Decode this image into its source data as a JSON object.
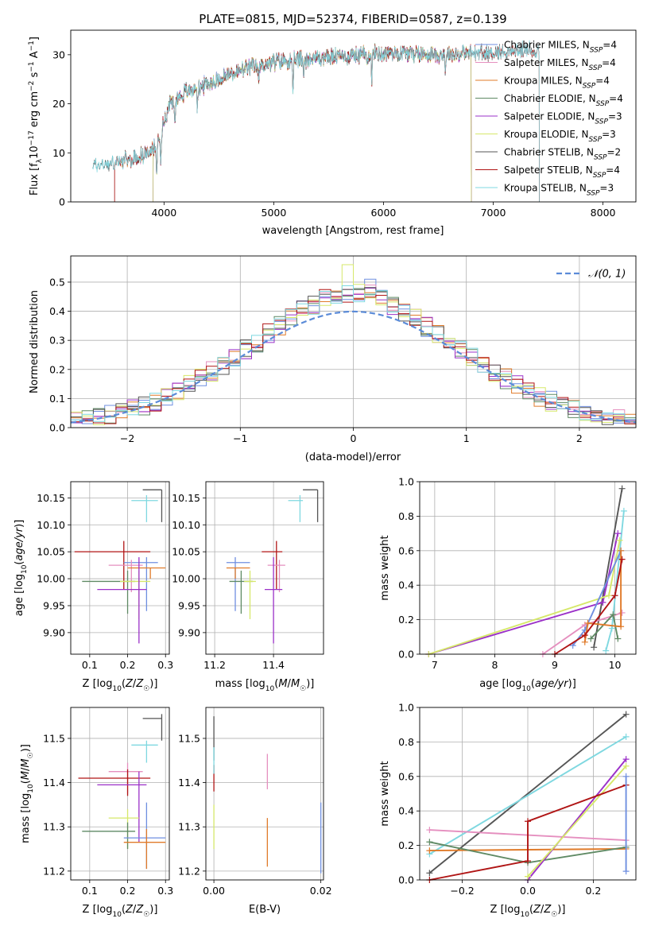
{
  "figure_title": "PLATE=0815, MJD=52374, FIBERID=0587, z=0.139",
  "colors": {
    "chabrier_miles": "#6f8fe0",
    "salpeter_miles": "#e58fbf",
    "kroupa_miles": "#e07b2a",
    "chabrier_elodie": "#5f8a64",
    "salpeter_elodie": "#9b30c8",
    "kroupa_elodie": "#d6e86a",
    "chabrier_stelib": "#555555",
    "salpeter_stelib": "#b01515",
    "kroupa_stelib": "#7fd8e0",
    "normal_curve": "#5b8bd8",
    "grid": "#b0b0b0"
  },
  "chart_data": [
    {
      "id": "spectrum",
      "type": "line",
      "title": "PLATE=0815, MJD=52374, FIBERID=0587, z=0.139",
      "xlabel": "wavelength [Angstrom, rest frame]",
      "ylabel": "Flux [f_λ10^-17 erg cm^-2 s^-1 A^-1]",
      "xlim": [
        3150,
        8300
      ],
      "ylim": [
        0,
        35
      ],
      "xticks": [
        4000,
        5000,
        6000,
        7000,
        8000
      ],
      "yticks": [
        0,
        10,
        20,
        30
      ],
      "grid": false,
      "legend_position": "top-right",
      "data_range": [
        3350,
        7420
      ],
      "continuum": [
        [
          3350,
          7.5
        ],
        [
          3500,
          7.8
        ],
        [
          3700,
          8.5
        ],
        [
          3900,
          10.5
        ],
        [
          3980,
          15
        ],
        [
          4050,
          20
        ],
        [
          4200,
          22.5
        ],
        [
          4400,
          24
        ],
        [
          4600,
          26
        ],
        [
          4800,
          27.5
        ],
        [
          5000,
          28.5
        ],
        [
          5200,
          29
        ],
        [
          5500,
          29.5
        ],
        [
          5800,
          30
        ],
        [
          6100,
          30.5
        ],
        [
          6500,
          30
        ],
        [
          7000,
          30.5
        ],
        [
          7420,
          31
        ]
      ],
      "absorption_lines": [
        [
          3934,
          8
        ],
        [
          3969,
          7
        ],
        [
          4101,
          4
        ],
        [
          4304,
          4
        ],
        [
          4861,
          3
        ],
        [
          5175,
          8
        ],
        [
          5270,
          3
        ],
        [
          5893,
          5
        ],
        [
          6563,
          3
        ]
      ],
      "series": [
        {
          "name": "Chabrier MILES, N_SSP=4",
          "color_key": "chabrier_miles",
          "range": [
            3550,
            6800
          ]
        },
        {
          "name": "Salpeter MILES, N_SSP=4",
          "color_key": "salpeter_miles",
          "range": [
            3550,
            6800
          ]
        },
        {
          "name": "Kroupa MILES, N_SSP=4",
          "color_key": "kroupa_miles",
          "range": [
            3550,
            6800
          ]
        },
        {
          "name": "Chabrier ELODIE, N_SSP=4",
          "color_key": "chabrier_elodie",
          "range": [
            3900,
            6800
          ]
        },
        {
          "name": "Salpeter ELODIE, N_SSP=3",
          "color_key": "salpeter_elodie",
          "range": [
            3900,
            6800
          ]
        },
        {
          "name": "Kroupa ELODIE, N_SSP=3",
          "color_key": "kroupa_elodie",
          "range": [
            3900,
            6800
          ]
        },
        {
          "name": "Chabrier STELIB, N_SSP=2",
          "color_key": "chabrier_stelib",
          "range": [
            3350,
            7420
          ]
        },
        {
          "name": "Salpeter STELIB, N_SSP=4",
          "color_key": "salpeter_stelib",
          "range": [
            3550,
            7420
          ]
        },
        {
          "name": "Kroupa STELIB, N_SSP=3",
          "color_key": "kroupa_stelib",
          "range": [
            3350,
            7420
          ]
        }
      ]
    },
    {
      "id": "residuals",
      "type": "line",
      "xlabel": "(data-model)/error",
      "ylabel": "Normed distribution",
      "xlim": [
        -2.5,
        2.5
      ],
      "ylim": [
        0,
        0.59
      ],
      "xticks": [
        -2,
        -1,
        0,
        1,
        2
      ],
      "yticks": [
        0.0,
        0.1,
        0.2,
        0.3,
        0.4,
        0.5
      ],
      "grid": true,
      "legend_position": "top-right",
      "legend": [
        {
          "label": "𝒩(0, 1)",
          "color_key": "normal_curve"
        }
      ],
      "bin_width": 0.1,
      "histogram_peak_values": {
        "kroupa_elodie": 0.56,
        "chabrier_miles": 0.51,
        "salpeter_miles": 0.49
      }
    },
    {
      "id": "age_vs_Z",
      "type": "scatter",
      "xlabel": "Z [log10(Z/Z☉)]",
      "ylabel": "age  [log10(age/yr)]",
      "xlim": [
        0.05,
        0.31
      ],
      "ylim": [
        9.86,
        10.18
      ],
      "xticks": [
        0.1,
        0.2,
        0.3
      ],
      "yticks": [
        9.9,
        9.95,
        10.0,
        10.05,
        10.1,
        10.15
      ],
      "grid": true,
      "points": [
        {
          "color_key": "chabrier_stelib",
          "x": 0.29,
          "xerr": [
            0.05,
            0.0
          ],
          "y": 10.165,
          "yerr": [
            0.06,
            0.0
          ]
        },
        {
          "color_key": "kroupa_stelib",
          "x": 0.25,
          "xerr": [
            0.04,
            0.03
          ],
          "y": 10.145,
          "yerr": [
            0.04,
            0.01
          ]
        },
        {
          "color_key": "salpeter_stelib",
          "x": 0.19,
          "xerr": [
            0.13,
            0.07
          ],
          "y": 10.05,
          "yerr": [
            0.07,
            0.02
          ]
        },
        {
          "color_key": "chabrier_miles",
          "x": 0.25,
          "xerr": [
            0.06,
            0.03
          ],
          "y": 10.03,
          "yerr": [
            0.09,
            0.01
          ]
        },
        {
          "color_key": "salpeter_miles",
          "x": 0.21,
          "xerr": [
            0.06,
            0.03
          ],
          "y": 10.025,
          "yerr": [
            0.05,
            0.01
          ]
        },
        {
          "color_key": "kroupa_miles",
          "x": 0.26,
          "xerr": [
            0.06,
            0.04
          ],
          "y": 10.02,
          "yerr": [
            0.02,
            0.0
          ]
        },
        {
          "color_key": "chabrier_elodie",
          "x": 0.2,
          "xerr": [
            0.12,
            0.02
          ],
          "y": 9.995,
          "yerr": [
            0.06,
            0.02
          ]
        },
        {
          "color_key": "kroupa_elodie",
          "x": 0.23,
          "xerr": [
            0.05,
            0.03
          ],
          "y": 9.995,
          "yerr": [
            0.07,
            0.02
          ]
        },
        {
          "color_key": "salpeter_elodie",
          "x": 0.23,
          "xerr": [
            0.11,
            0.02
          ],
          "y": 9.98,
          "yerr": [
            0.1,
            0.06
          ]
        }
      ]
    },
    {
      "id": "age_vs_mass",
      "type": "scatter",
      "xlabel": "mass [log10(M/M☉)]",
      "ylabel": "",
      "xlim": [
        11.17,
        11.57
      ],
      "ylim": [
        9.86,
        10.18
      ],
      "xticks": [
        11.2,
        11.4
      ],
      "yticks": [
        9.9,
        9.95,
        10.0,
        10.05,
        10.1,
        10.15
      ],
      "grid": true,
      "points": [
        {
          "color_key": "chabrier_stelib",
          "x": 11.55,
          "xerr": [
            0.05,
            0.0
          ],
          "y": 10.165,
          "yerr": [
            0.06,
            0.0
          ]
        },
        {
          "color_key": "kroupa_stelib",
          "x": 11.49,
          "xerr": [
            0.04,
            0.01
          ],
          "y": 10.145,
          "yerr": [
            0.04,
            0.01
          ]
        },
        {
          "color_key": "salpeter_stelib",
          "x": 11.41,
          "xerr": [
            0.05,
            0.02
          ],
          "y": 10.05,
          "yerr": [
            0.07,
            0.02
          ]
        },
        {
          "color_key": "chabrier_miles",
          "x": 11.27,
          "xerr": [
            0.03,
            0.05
          ],
          "y": 10.03,
          "yerr": [
            0.09,
            0.01
          ]
        },
        {
          "color_key": "salpeter_miles",
          "x": 11.42,
          "xerr": [
            0.04,
            0.02
          ],
          "y": 10.025,
          "yerr": [
            0.05,
            0.01
          ]
        },
        {
          "color_key": "kroupa_miles",
          "x": 11.27,
          "xerr": [
            0.03,
            0.05
          ],
          "y": 10.02,
          "yerr": [
            0.02,
            0.0
          ]
        },
        {
          "color_key": "chabrier_elodie",
          "x": 11.29,
          "xerr": [
            0.04,
            0.04
          ],
          "y": 9.995,
          "yerr": [
            0.06,
            0.02
          ]
        },
        {
          "color_key": "kroupa_elodie",
          "x": 11.32,
          "xerr": [
            0.02,
            0.02
          ],
          "y": 9.995,
          "yerr": [
            0.07,
            0.02
          ]
        },
        {
          "color_key": "salpeter_elodie",
          "x": 11.4,
          "xerr": [
            0.03,
            0.03
          ],
          "y": 9.98,
          "yerr": [
            0.1,
            0.06
          ]
        }
      ]
    },
    {
      "id": "weight_vs_age",
      "type": "line",
      "xlabel": "age  [log10(age/yr)]",
      "ylabel": "mass weight",
      "xlim": [
        6.75,
        10.35
      ],
      "ylim": [
        0,
        1.0
      ],
      "xticks": [
        7,
        8,
        9,
        10
      ],
      "yticks": [
        0.0,
        0.2,
        0.4,
        0.6,
        0.8,
        1.0
      ],
      "grid": true,
      "series": [
        {
          "color_key": "chabrier_stelib",
          "x": [
            9.65,
            10.12
          ],
          "y": [
            0.04,
            0.96
          ]
        },
        {
          "color_key": "kroupa_stelib",
          "x": [
            9.85,
            9.95,
            10.15
          ],
          "y": [
            0.02,
            0.15,
            0.83
          ]
        },
        {
          "color_key": "salpeter_elodie",
          "x": [
            6.9,
            9.8,
            10.05
          ],
          "y": [
            0.0,
            0.3,
            0.7
          ]
        },
        {
          "color_key": "kroupa_elodie",
          "x": [
            6.9,
            9.9,
            10.08
          ],
          "y": [
            0.0,
            0.34,
            0.66
          ]
        },
        {
          "color_key": "salpeter_miles",
          "x": [
            8.8,
            9.5,
            10.12
          ],
          "y": [
            0.0,
            0.17,
            0.24
          ]
        },
        {
          "color_key": "chabrier_elodie",
          "x": [
            9.6,
            9.97,
            10.05
          ],
          "y": [
            0.09,
            0.23,
            0.09
          ]
        },
        {
          "color_key": "chabrier_miles",
          "x": [
            9.3,
            9.5,
            10.1
          ],
          "y": [
            0.05,
            0.14,
            0.6
          ]
        },
        {
          "color_key": "kroupa_miles",
          "x": [
            9.5,
            9.55,
            10.1,
            10.1
          ],
          "y": [
            0.07,
            0.18,
            0.16,
            0.6
          ]
        },
        {
          "color_key": "salpeter_stelib",
          "x": [
            9.0,
            9.5,
            10.0,
            10.12
          ],
          "y": [
            0.0,
            0.11,
            0.34,
            0.55
          ]
        }
      ]
    },
    {
      "id": "mass_vs_Z",
      "type": "scatter",
      "xlabel": "Z [log10(Z/Z☉)]",
      "ylabel": "mass [log10(M/M☉)]",
      "xlim": [
        0.05,
        0.31
      ],
      "ylim": [
        11.18,
        11.57
      ],
      "xticks": [
        0.1,
        0.2,
        0.3
      ],
      "yticks": [
        11.2,
        11.3,
        11.4,
        11.5
      ],
      "grid": true,
      "points": [
        {
          "color_key": "chabrier_stelib",
          "x": 0.29,
          "xerr": [
            0.05,
            0.0
          ],
          "y": 11.545,
          "yerr": [
            0.05,
            0.01
          ]
        },
        {
          "color_key": "kroupa_stelib",
          "x": 0.25,
          "xerr": [
            0.04,
            0.03
          ],
          "y": 11.485,
          "yerr": [
            0.04,
            0.01
          ]
        },
        {
          "color_key": "salpeter_miles",
          "x": 0.2,
          "xerr": [
            0.05,
            0.04
          ],
          "y": 11.425,
          "yerr": [
            0.05,
            0.02
          ]
        },
        {
          "color_key": "salpeter_stelib",
          "x": 0.2,
          "xerr": [
            0.13,
            0.06
          ],
          "y": 11.41,
          "yerr": [
            0.04,
            0.02
          ]
        },
        {
          "color_key": "salpeter_elodie",
          "x": 0.23,
          "xerr": [
            0.11,
            0.02
          ],
          "y": 11.395,
          "yerr": [
            0.13,
            0.03
          ]
        },
        {
          "color_key": "kroupa_elodie",
          "x": 0.2,
          "xerr": [
            0.05,
            0.03
          ],
          "y": 11.32,
          "yerr": [
            0.07,
            0.02
          ]
        },
        {
          "color_key": "chabrier_elodie",
          "x": 0.2,
          "xerr": [
            0.12,
            0.02
          ],
          "y": 11.29,
          "yerr": [
            0.04,
            0.02
          ]
        },
        {
          "color_key": "chabrier_miles",
          "x": 0.25,
          "xerr": [
            0.06,
            0.05
          ],
          "y": 11.275,
          "yerr": [
            0.07,
            0.08
          ]
        },
        {
          "color_key": "kroupa_miles",
          "x": 0.25,
          "xerr": [
            0.06,
            0.05
          ],
          "y": 11.265,
          "yerr": [
            0.06,
            0.03
          ]
        }
      ]
    },
    {
      "id": "mass_vs_ebv",
      "type": "scatter",
      "xlabel": "E(B-V)",
      "ylabel": "",
      "xlim": [
        -0.0015,
        0.0205
      ],
      "ylim": [
        11.18,
        11.57
      ],
      "xticks": [
        0.0,
        0.02
      ],
      "xtick_labels": [
        "0.00",
        "0.02"
      ],
      "yticks": [
        11.2,
        11.3,
        11.4,
        11.5
      ],
      "grid": true,
      "points": [
        {
          "color_key": "chabrier_stelib",
          "x": 0.0,
          "y": 11.5,
          "yerr": [
            0.05,
            0.05
          ]
        },
        {
          "color_key": "salpeter_stelib",
          "x": 0.0,
          "y": 11.41,
          "yerr": [
            0.03,
            0.03
          ]
        },
        {
          "color_key": "kroupa_elodie",
          "x": 0.0,
          "y": 11.3,
          "yerr": [
            0.05,
            0.05
          ]
        },
        {
          "color_key": "kroupa_stelib",
          "x": 0.0,
          "y": 11.45,
          "yerr": [
            0.03,
            0.03
          ]
        },
        {
          "color_key": "salpeter_miles",
          "x": 0.01,
          "y": 11.425,
          "yerr": [
            0.04,
            0.04
          ]
        },
        {
          "color_key": "kroupa_miles",
          "x": 0.01,
          "y": 11.265,
          "yerr": [
            0.055,
            0.055
          ]
        },
        {
          "color_key": "chabrier_miles",
          "x": 0.02,
          "y": 11.275,
          "yerr": [
            0.08,
            0.08
          ]
        }
      ]
    },
    {
      "id": "weight_vs_Z",
      "type": "line",
      "xlabel": "Z [log10(Z/Z☉)]",
      "ylabel": "mass weight",
      "xlim": [
        -0.33,
        0.33
      ],
      "ylim": [
        0,
        1.0
      ],
      "xticks": [
        -0.2,
        0.0,
        0.2
      ],
      "yticks": [
        0.0,
        0.2,
        0.4,
        0.6,
        0.8,
        1.0
      ],
      "grid": true,
      "series": [
        {
          "color_key": "chabrier_stelib",
          "x": [
            -0.3,
            0.3
          ],
          "y": [
            0.04,
            0.96
          ]
        },
        {
          "color_key": "kroupa_stelib",
          "x": [
            -0.3,
            0.3
          ],
          "y": [
            0.15,
            0.83
          ]
        },
        {
          "color_key": "salpeter_miles",
          "x": [
            -0.3,
            0.3
          ],
          "y": [
            0.29,
            0.23
          ]
        },
        {
          "color_key": "kroupa_miles",
          "x": [
            -0.3,
            0.3
          ],
          "y": [
            0.17,
            0.18
          ]
        },
        {
          "color_key": "chabrier_elodie",
          "x": [
            -0.3,
            0.0,
            0.3
          ],
          "y": [
            0.22,
            0.1,
            0.19
          ]
        },
        {
          "color_key": "salpeter_elodie",
          "x": [
            0.0,
            0.3
          ],
          "y": [
            0.0,
            0.7
          ]
        },
        {
          "color_key": "kroupa_elodie",
          "x": [
            0.0,
            0.3
          ],
          "y": [
            0.02,
            0.66
          ]
        },
        {
          "color_key": "salpeter_stelib",
          "x": [
            -0.3,
            0.0,
            0.0,
            0.3
          ],
          "y": [
            0.0,
            0.11,
            0.34,
            0.55
          ]
        },
        {
          "color_key": "chabrier_miles",
          "x": [
            0.3,
            0.3
          ],
          "y": [
            0.05,
            0.6
          ]
        }
      ]
    }
  ]
}
